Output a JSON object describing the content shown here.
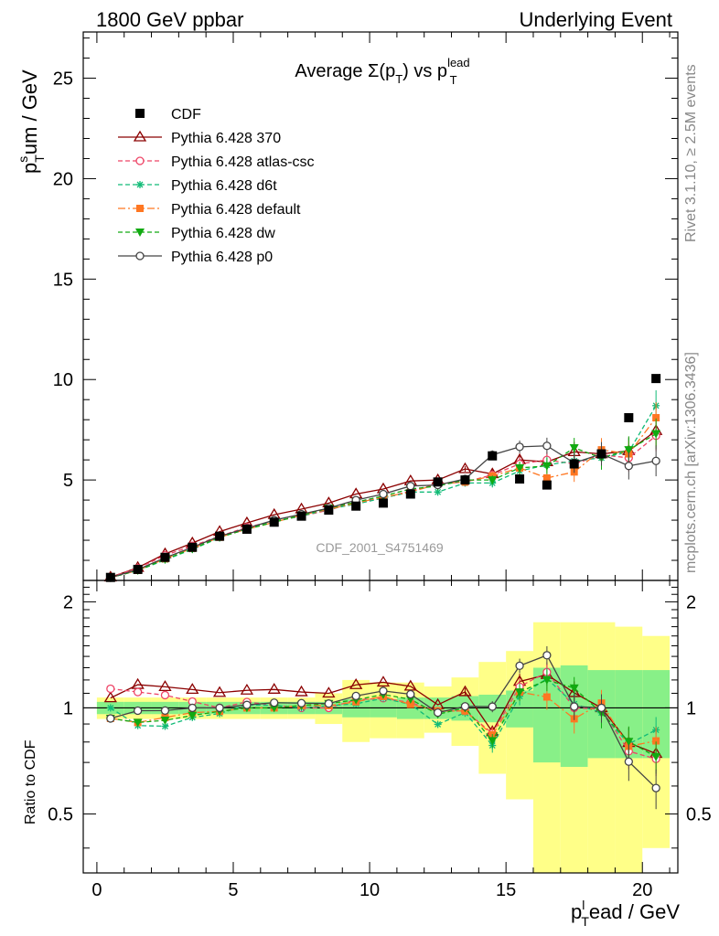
{
  "header": {
    "left": "1800 GeV ppbar",
    "right": "Underlying Event"
  },
  "side": {
    "rivet": "Rivet 3.1.10, ≥ 2.5M events",
    "mcplots": "mcplots.cern.ch [arXiv:1306.3436]"
  },
  "watermark": "CDF_2001_S4751469",
  "chart_data": {
    "type": "line",
    "title": "Average Σ(pT) vs pT lead",
    "title_parts": {
      "main": "Average Σ(p",
      "sub1": "T",
      "mid": ") vs p",
      "sup": "lead",
      "sub2": "T"
    },
    "xlabel_parts": {
      "main": "p",
      "sup": "l",
      "sub": "T",
      "rest": "ead / GeV"
    },
    "ylabel_parts": {
      "main": "p",
      "sup": "s",
      "sub": "T",
      "rest": "um / GeV"
    },
    "ratio_ylabel": "Ratio to CDF",
    "xlim": [
      -0.5,
      21.3
    ],
    "ylim": [
      0,
      27.3
    ],
    "ratio_ylim": [
      0.34,
      2.3
    ],
    "xticks": [
      0,
      5,
      10,
      15,
      20
    ],
    "yticks": [
      5,
      10,
      15,
      20,
      25
    ],
    "ratio_yticks": [
      0.5,
      1,
      2
    ],
    "x": [
      0.5,
      1.5,
      2.5,
      3.5,
      4.5,
      5.5,
      6.5,
      7.5,
      8.5,
      9.5,
      10.5,
      11.5,
      12.5,
      13.5,
      14.5,
      15.5,
      16.5,
      17.5,
      18.5,
      19.5,
      20.5
    ],
    "reference": {
      "name": "CDF",
      "values": [
        0.15,
        0.55,
        1.15,
        1.65,
        2.2,
        2.55,
        2.9,
        3.2,
        3.5,
        3.7,
        3.85,
        4.3,
        4.9,
        5.0,
        6.2,
        5.05,
        4.75,
        5.8,
        6.3,
        8.1,
        10.05
      ],
      "band_green": [
        0.04,
        0.04,
        0.04,
        0.04,
        0.04,
        0.04,
        0.04,
        0.04,
        0.04,
        0.06,
        0.06,
        0.07,
        0.07,
        0.08,
        0.09,
        0.12,
        0.3,
        0.32,
        0.28,
        0.28,
        0.28
      ],
      "band_yellow": [
        0.07,
        0.07,
        0.07,
        0.07,
        0.07,
        0.07,
        0.07,
        0.07,
        0.1,
        0.2,
        0.18,
        0.18,
        0.15,
        0.22,
        0.35,
        0.45,
        0.75,
        0.75,
        0.75,
        0.7,
        0.6
      ]
    },
    "legend": [
      {
        "label": "CDF",
        "key": "ref"
      },
      {
        "label": "Pythia 6.428 370",
        "key": "s370"
      },
      {
        "label": "Pythia 6.428 atlas-csc",
        "key": "atlas"
      },
      {
        "label": "Pythia 6.428 d6t",
        "key": "d6t"
      },
      {
        "label": "Pythia 6.428 default",
        "key": "default"
      },
      {
        "label": "Pythia 6.428 dw",
        "key": "dw"
      },
      {
        "label": "Pythia 6.428 p0",
        "key": "p0"
      }
    ],
    "series": [
      {
        "key": "s370",
        "name": "Pythia 6.428 370",
        "color": "#8b0000",
        "dash": "",
        "marker": "triangle-open",
        "values": [
          0.16,
          0.64,
          1.32,
          1.86,
          2.43,
          2.86,
          3.27,
          3.55,
          3.85,
          4.3,
          4.55,
          4.95,
          5.0,
          5.55,
          5.3,
          6.0,
          5.9,
          6.4,
          6.3,
          6.45,
          7.45
        ]
      },
      {
        "key": "atlas",
        "name": "Pythia 6.428 atlas-csc",
        "color": "#ee4466",
        "dash": "5,3",
        "marker": "circle-open",
        "values": [
          0.17,
          0.61,
          1.25,
          1.72,
          2.2,
          2.65,
          2.95,
          3.2,
          3.5,
          3.9,
          4.1,
          4.45,
          4.8,
          4.9,
          5.25,
          5.8,
          6.0,
          5.8,
          6.25,
          6.1,
          7.2
        ]
      },
      {
        "key": "d6t",
        "name": "Pythia 6.428 d6t",
        "color": "#11bb77",
        "dash": "5,3",
        "marker": "asterisk",
        "values": [
          0.15,
          0.49,
          1.02,
          1.55,
          2.12,
          2.6,
          2.95,
          3.2,
          3.55,
          3.8,
          4.1,
          4.4,
          4.4,
          4.85,
          4.85,
          5.45,
          5.75,
          5.95,
          6.1,
          6.4,
          8.7
        ]
      },
      {
        "key": "default",
        "name": "Pythia 6.428 default",
        "color": "#ff7722",
        "dash": "8,3,2,3",
        "marker": "square-filled",
        "values": [
          0.14,
          0.5,
          1.08,
          1.6,
          2.15,
          2.55,
          2.9,
          3.25,
          3.55,
          3.85,
          4.15,
          4.4,
          4.8,
          4.9,
          5.2,
          5.6,
          5.1,
          5.4,
          6.5,
          6.3,
          8.1
        ]
      },
      {
        "key": "dw",
        "name": "Pythia 6.428 dw",
        "color": "#11aa11",
        "dash": "5,3",
        "marker": "triangle-down-filled",
        "values": [
          0.14,
          0.5,
          1.06,
          1.57,
          2.15,
          2.55,
          2.9,
          3.25,
          3.6,
          3.9,
          4.2,
          4.55,
          4.7,
          5.0,
          5.0,
          5.6,
          5.7,
          6.6,
          6.1,
          6.5,
          7.3
        ]
      },
      {
        "key": "p0",
        "name": "Pythia 6.428 p0",
        "color": "#444444",
        "dash": "",
        "marker": "circle-open",
        "values": [
          0.14,
          0.54,
          1.13,
          1.65,
          2.2,
          2.6,
          3.0,
          3.3,
          3.6,
          4.0,
          4.3,
          4.7,
          4.75,
          5.05,
          6.25,
          6.65,
          6.7,
          5.85,
          6.3,
          5.7,
          5.95
        ]
      }
    ]
  }
}
